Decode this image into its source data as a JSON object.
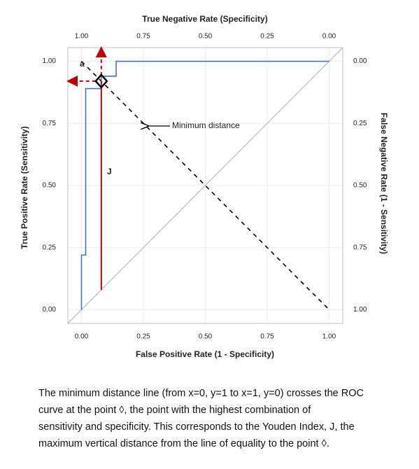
{
  "chart_data": {
    "type": "line",
    "title": "True Negative Rate (Specificity)",
    "xlabel": "False Positive Rate (1 - Specificity)",
    "ylabel": "True Positive Rate (Sensitivity)",
    "y2label": "False Negative Rate (1 - Sensitivity)",
    "xlim": [
      -0.055,
      1.055
    ],
    "ylim": [
      -0.055,
      1.055
    ],
    "x2lim": [
      1.055,
      -0.055
    ],
    "y2lim": [
      1.055,
      -0.055
    ],
    "xticks": [
      {
        "value": 0,
        "label": "0.00"
      },
      {
        "value": 0.25,
        "label": "0.25"
      },
      {
        "value": 0.5,
        "label": "0.50"
      },
      {
        "value": 0.75,
        "label": "0.75"
      },
      {
        "value": 1,
        "label": "1.00"
      }
    ],
    "yticks": [
      {
        "value": 0,
        "label": "0.00"
      },
      {
        "value": 0.25,
        "label": "0.25"
      },
      {
        "value": 0.5,
        "label": "0.50"
      },
      {
        "value": 0.75,
        "label": "0.75"
      },
      {
        "value": 1,
        "label": "1.00"
      }
    ],
    "x2ticks": [
      {
        "value": 1,
        "label": "1.00"
      },
      {
        "value": 0.75,
        "label": "0.75"
      },
      {
        "value": 0.5,
        "label": "0.50"
      },
      {
        "value": 0.25,
        "label": "0.25"
      },
      {
        "value": 0,
        "label": "0.00"
      }
    ],
    "y2ticks": [
      {
        "value": 0,
        "label": "0.00"
      },
      {
        "value": 0.25,
        "label": "0.25"
      },
      {
        "value": 0.5,
        "label": "0.50"
      },
      {
        "value": 0.75,
        "label": "0.75"
      },
      {
        "value": 1,
        "label": "1.00"
      }
    ],
    "grid": true,
    "series": [
      {
        "color": "#4472c4",
        "x": [
          0,
          0,
          0.017,
          0.017,
          0.08,
          0.08,
          0.14,
          0.14,
          1
        ],
        "y": [
          0,
          0.22,
          0.22,
          0.89,
          0.89,
          0.94,
          0.94,
          1,
          1
        ]
      }
    ],
    "equality_line_color": "#bfbfbf",
    "min_distance_line": {
      "x": [
        0,
        1
      ],
      "y": [
        1,
        0
      ],
      "color": "#000000"
    },
    "optimal_point": {
      "x": 0.08,
      "y": 0.92,
      "color": "#c00000"
    },
    "annotations": {
      "a": "a",
      "j": "J",
      "min_distance": "Minimum distance"
    }
  },
  "caption": [
    "The minimum distance line (from x=0, y=1 to x=1, y=0) crosses the ROC",
    "curve at the point ◊, the point with the highest combination of",
    "sensitivity and specificity. This corresponds to the Youden Index, J, the",
    "maximum vertical distance from the line of equality to the point ◊."
  ]
}
